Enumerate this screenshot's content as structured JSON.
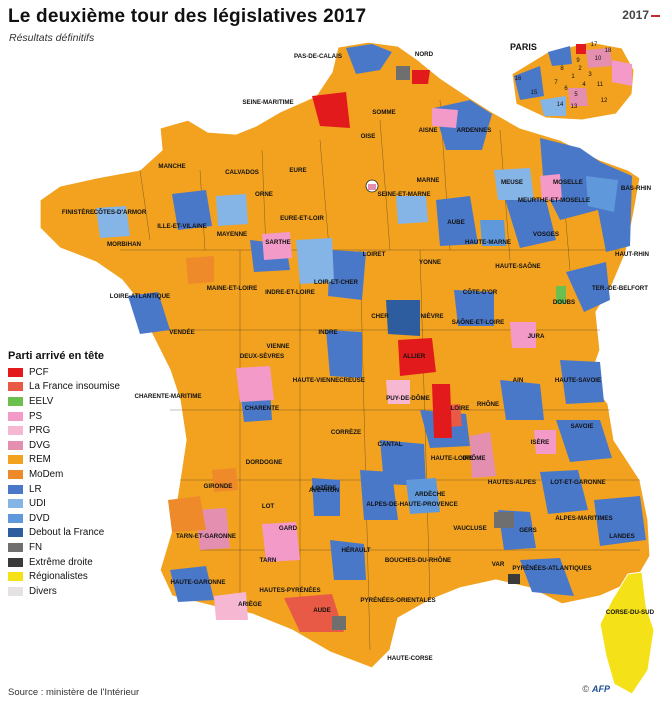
{
  "header": {
    "title": "Le deuxième tour des législatives 2017",
    "subtitle": "Résultats définitifs",
    "logo_year": "2017"
  },
  "colors": {
    "PCF": "#e31a1c",
    "LFI": "#e85a45",
    "EELV": "#6bbf4e",
    "PS": "#f49ac8",
    "PRG": "#f6b7d2",
    "DVG": "#e48fb0",
    "REM": "#f2a21f",
    "MoDem": "#ef8a2a",
    "LR": "#4a78c9",
    "UDI": "#85b4e6",
    "DVD": "#5f99dc",
    "DLF": "#2e5d9f",
    "FN": "#6f6f6f",
    "EXD": "#3a3a3a",
    "REG": "#f5e118",
    "DIV": "#e6e2e2"
  },
  "legend": {
    "title": "Parti arrivé en tête",
    "items": [
      {
        "label": "PCF",
        "key": "PCF"
      },
      {
        "label": "La France insoumise",
        "key": "LFI"
      },
      {
        "label": "EELV",
        "key": "EELV"
      },
      {
        "label": "PS",
        "key": "PS"
      },
      {
        "label": "PRG",
        "key": "PRG"
      },
      {
        "label": "DVG",
        "key": "DVG"
      },
      {
        "label": "REM",
        "key": "REM"
      },
      {
        "label": "MoDem",
        "key": "MoDem"
      },
      {
        "label": "LR",
        "key": "LR"
      },
      {
        "label": "UDI",
        "key": "UDI"
      },
      {
        "label": "DVD",
        "key": "DVD"
      },
      {
        "label": "Debout la France",
        "key": "DLF"
      },
      {
        "label": "FN",
        "key": "FN"
      },
      {
        "label": "Extrême droite",
        "key": "EXD"
      },
      {
        "label": "Régionalistes",
        "key": "REG"
      },
      {
        "label": "Divers",
        "key": "DIV"
      }
    ]
  },
  "map": {
    "departments": [
      {
        "label": "PAS-DE-CALAIS"
      },
      {
        "label": "NORD"
      },
      {
        "label": "SEINE-MARITIME"
      },
      {
        "label": "SOMME"
      },
      {
        "label": "OISE"
      },
      {
        "label": "AISNE"
      },
      {
        "label": "ARDENNES"
      },
      {
        "label": "MANCHE"
      },
      {
        "label": "CALVADOS"
      },
      {
        "label": "EURE"
      },
      {
        "label": "MARNE"
      },
      {
        "label": "MEUSE"
      },
      {
        "label": "MOSELLE"
      },
      {
        "label": "BAS-RHIN"
      },
      {
        "label": "FINISTÈRE"
      },
      {
        "label": "CÔTES-D'ARMOR"
      },
      {
        "label": "ORNE"
      },
      {
        "label": "EURE-ET-LOIR"
      },
      {
        "label": "SEINE-ET-MARNE"
      },
      {
        "label": "AUBE"
      },
      {
        "label": "MEURTHE-ET-MOSELLE"
      },
      {
        "label": "VOSGES"
      },
      {
        "label": "HAUT-RHIN"
      },
      {
        "label": "MORBIHAN"
      },
      {
        "label": "ILLE-ET-VILAINE"
      },
      {
        "label": "MAYENNE"
      },
      {
        "label": "SARTHE"
      },
      {
        "label": "LOIRET"
      },
      {
        "label": "YONNE"
      },
      {
        "label": "HAUTE-MARNE"
      },
      {
        "label": "HAUTE-SAÔNE"
      },
      {
        "label": "TER.-DE-BELFORT"
      },
      {
        "label": "LOIRE-ATLANTIQUE"
      },
      {
        "label": "MAINE-ET-LOIRE"
      },
      {
        "label": "INDRE-ET-LOIRE"
      },
      {
        "label": "LOIR-ET-CHER"
      },
      {
        "label": "CÔTE-D'OR"
      },
      {
        "label": "DOUBS"
      },
      {
        "label": "VENDÉE"
      },
      {
        "label": "CHER"
      },
      {
        "label": "NIÈVRE"
      },
      {
        "label": "JURA"
      },
      {
        "label": "INDRE"
      },
      {
        "label": "SAÔNE-ET-LOIRE"
      },
      {
        "label": "DEUX-SÈVRES"
      },
      {
        "label": "VIENNE"
      },
      {
        "label": "ALLIER"
      },
      {
        "label": "AIN"
      },
      {
        "label": "HAUTE-SAVOIE"
      },
      {
        "label": "CHARENTE-MARITIME"
      },
      {
        "label": "CHARENTE"
      },
      {
        "label": "HAUTE-VIENNE"
      },
      {
        "label": "CREUSE"
      },
      {
        "label": "PUY-DE-DÔME"
      },
      {
        "label": "LOIRE"
      },
      {
        "label": "RHÔNE"
      },
      {
        "label": "SAVOIE"
      },
      {
        "label": "CORRÈZE"
      },
      {
        "label": "CANTAL"
      },
      {
        "label": "HAUTE-LOIRE"
      },
      {
        "label": "ISÈRE"
      },
      {
        "label": "GIRONDE"
      },
      {
        "label": "DORDOGNE"
      },
      {
        "label": "LOZÈRE"
      },
      {
        "label": "ARDÈCHE"
      },
      {
        "label": "DRÔME"
      },
      {
        "label": "HAUTES-ALPES"
      },
      {
        "label": "LOT-ET-GARONNE"
      },
      {
        "label": "LOT"
      },
      {
        "label": "AVEYRON"
      },
      {
        "label": "ALPES-DE-HAUTE-PROVENCE"
      },
      {
        "label": "ALPES-MARITIMES"
      },
      {
        "label": "LANDES"
      },
      {
        "label": "TARN-ET-GARONNE"
      },
      {
        "label": "GARD"
      },
      {
        "label": "VAUCLUSE"
      },
      {
        "label": "GERS"
      },
      {
        "label": "TARN"
      },
      {
        "label": "HÉRAULT"
      },
      {
        "label": "BOUCHES-DU-RHÔNE"
      },
      {
        "label": "VAR"
      },
      {
        "label": "PYRÉNÉES-ATLANTIQUES"
      },
      {
        "label": "HAUTE-GARONNE"
      },
      {
        "label": "HAUTES-PYRÉNÉES"
      },
      {
        "label": "ARIÈGE"
      },
      {
        "label": "AUDE"
      },
      {
        "label": "PYRÉNÉES-ORIENTALES"
      },
      {
        "label": "HAUTE-CORSE"
      },
      {
        "label": "CORSE-DU-SUD"
      }
    ],
    "paris": {
      "title": "PARIS",
      "arrondissements": [
        "1",
        "2",
        "3",
        "4",
        "5",
        "6",
        "7",
        "8",
        "9",
        "10",
        "11",
        "12",
        "13",
        "14",
        "15",
        "16",
        "17",
        "18"
      ]
    }
  },
  "footer": {
    "source": "Source : ministère de l'Intérieur",
    "credit": "©",
    "agency": "AFP"
  }
}
